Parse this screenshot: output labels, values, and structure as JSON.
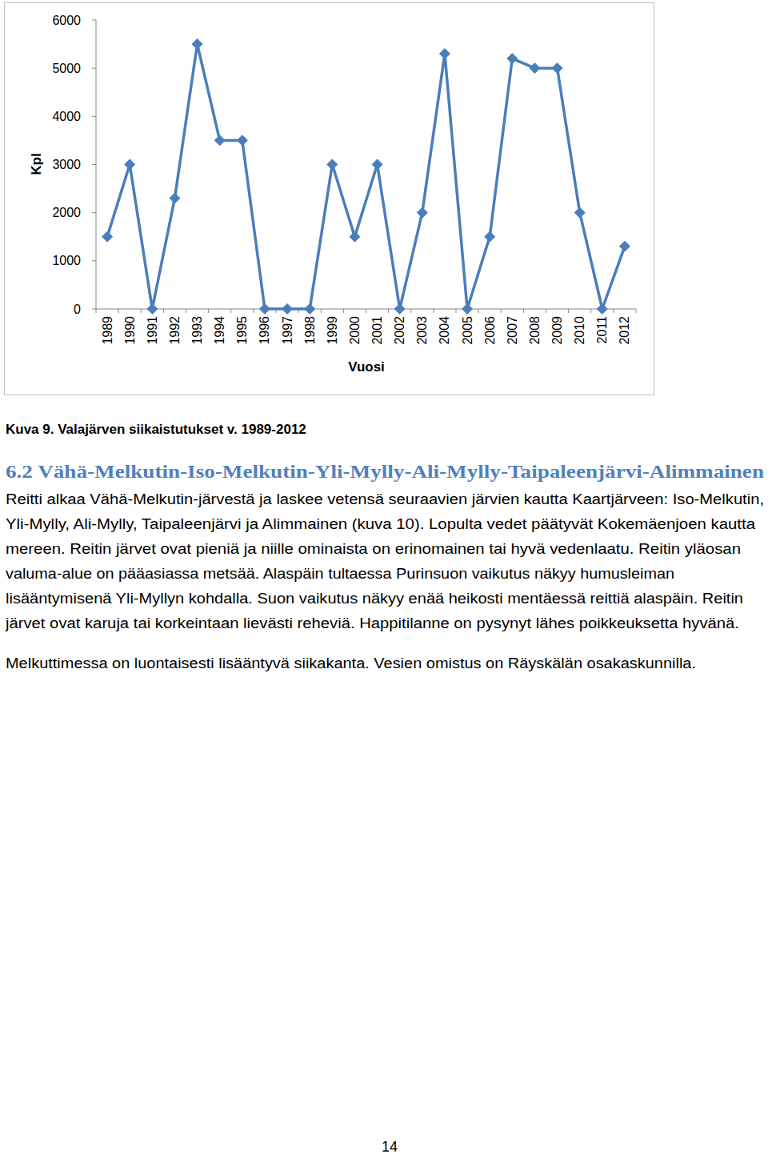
{
  "chart_data": {
    "type": "line",
    "x_label": "Vuosi",
    "y_label": "Kpl",
    "categories": [
      "1989",
      "1990",
      "1991",
      "1992",
      "1993",
      "1994",
      "1995",
      "1996",
      "1997",
      "1998",
      "1999",
      "2000",
      "2001",
      "2002",
      "2003",
      "2004",
      "2005",
      "2006",
      "2007",
      "2008",
      "2009",
      "2010",
      "2011",
      "2012"
    ],
    "values": [
      1500,
      3000,
      0,
      2300,
      5500,
      3500,
      3500,
      0,
      0,
      0,
      3000,
      1500,
      3000,
      0,
      2000,
      5300,
      0,
      1500,
      5200,
      5000,
      5000,
      2000,
      0,
      1300
    ],
    "color": "#4a7ebb",
    "marker": "diamond",
    "line_style": "solid",
    "ylim": [
      0,
      6000
    ],
    "yticks": [
      0,
      1000,
      2000,
      3000,
      4000,
      5000,
      6000
    ],
    "grid": false
  },
  "caption": "Kuva 9. Valajärven siikaistutukset v. 1989-2012",
  "section": {
    "heading": "6.2 Vähä-Melkutin-Iso-Melkutin-Yli-Mylly-Ali-Mylly-Taipaleenjärvi-Alimmainen",
    "paragraphs": [
      [
        "Reitti alkaa Vähä-Melkutin-järvestä ja laskee vetensä seuraavien järvien kautta Kaartjärveen: Iso-Melkutin,",
        "Yli-Mylly, Ali-Mylly, Taipaleenjärvi ja Alimmainen (kuva 10). Lopulta vedet päätyvät Kokemäenjoen kautta",
        "mereen. Reitin järvet ovat pieniä ja niille ominaista on erinomainen tai hyvä vedenlaatu. Reitin yläosan",
        "valuma-alue on pääasiassa metsää. Alaspäin tultaessa Purinsuon vaikutus näkyy humusleiman",
        "lisääntymisenä Yli-Myllyn kohdalla. Suon vaikutus näkyy enää heikosti mentäessä reittiä alaspäin. Reitin",
        "järvet ovat karuja tai korkeintaan lievästi reheviä. Happitilanne on pysynyt lähes poikkeuksetta hyvänä."
      ],
      [
        "Melkuttimessa on luontaisesti lisääntyvä siikakanta. Vesien omistus on Räyskälän osakaskunnilla."
      ]
    ]
  },
  "page_number": "14"
}
